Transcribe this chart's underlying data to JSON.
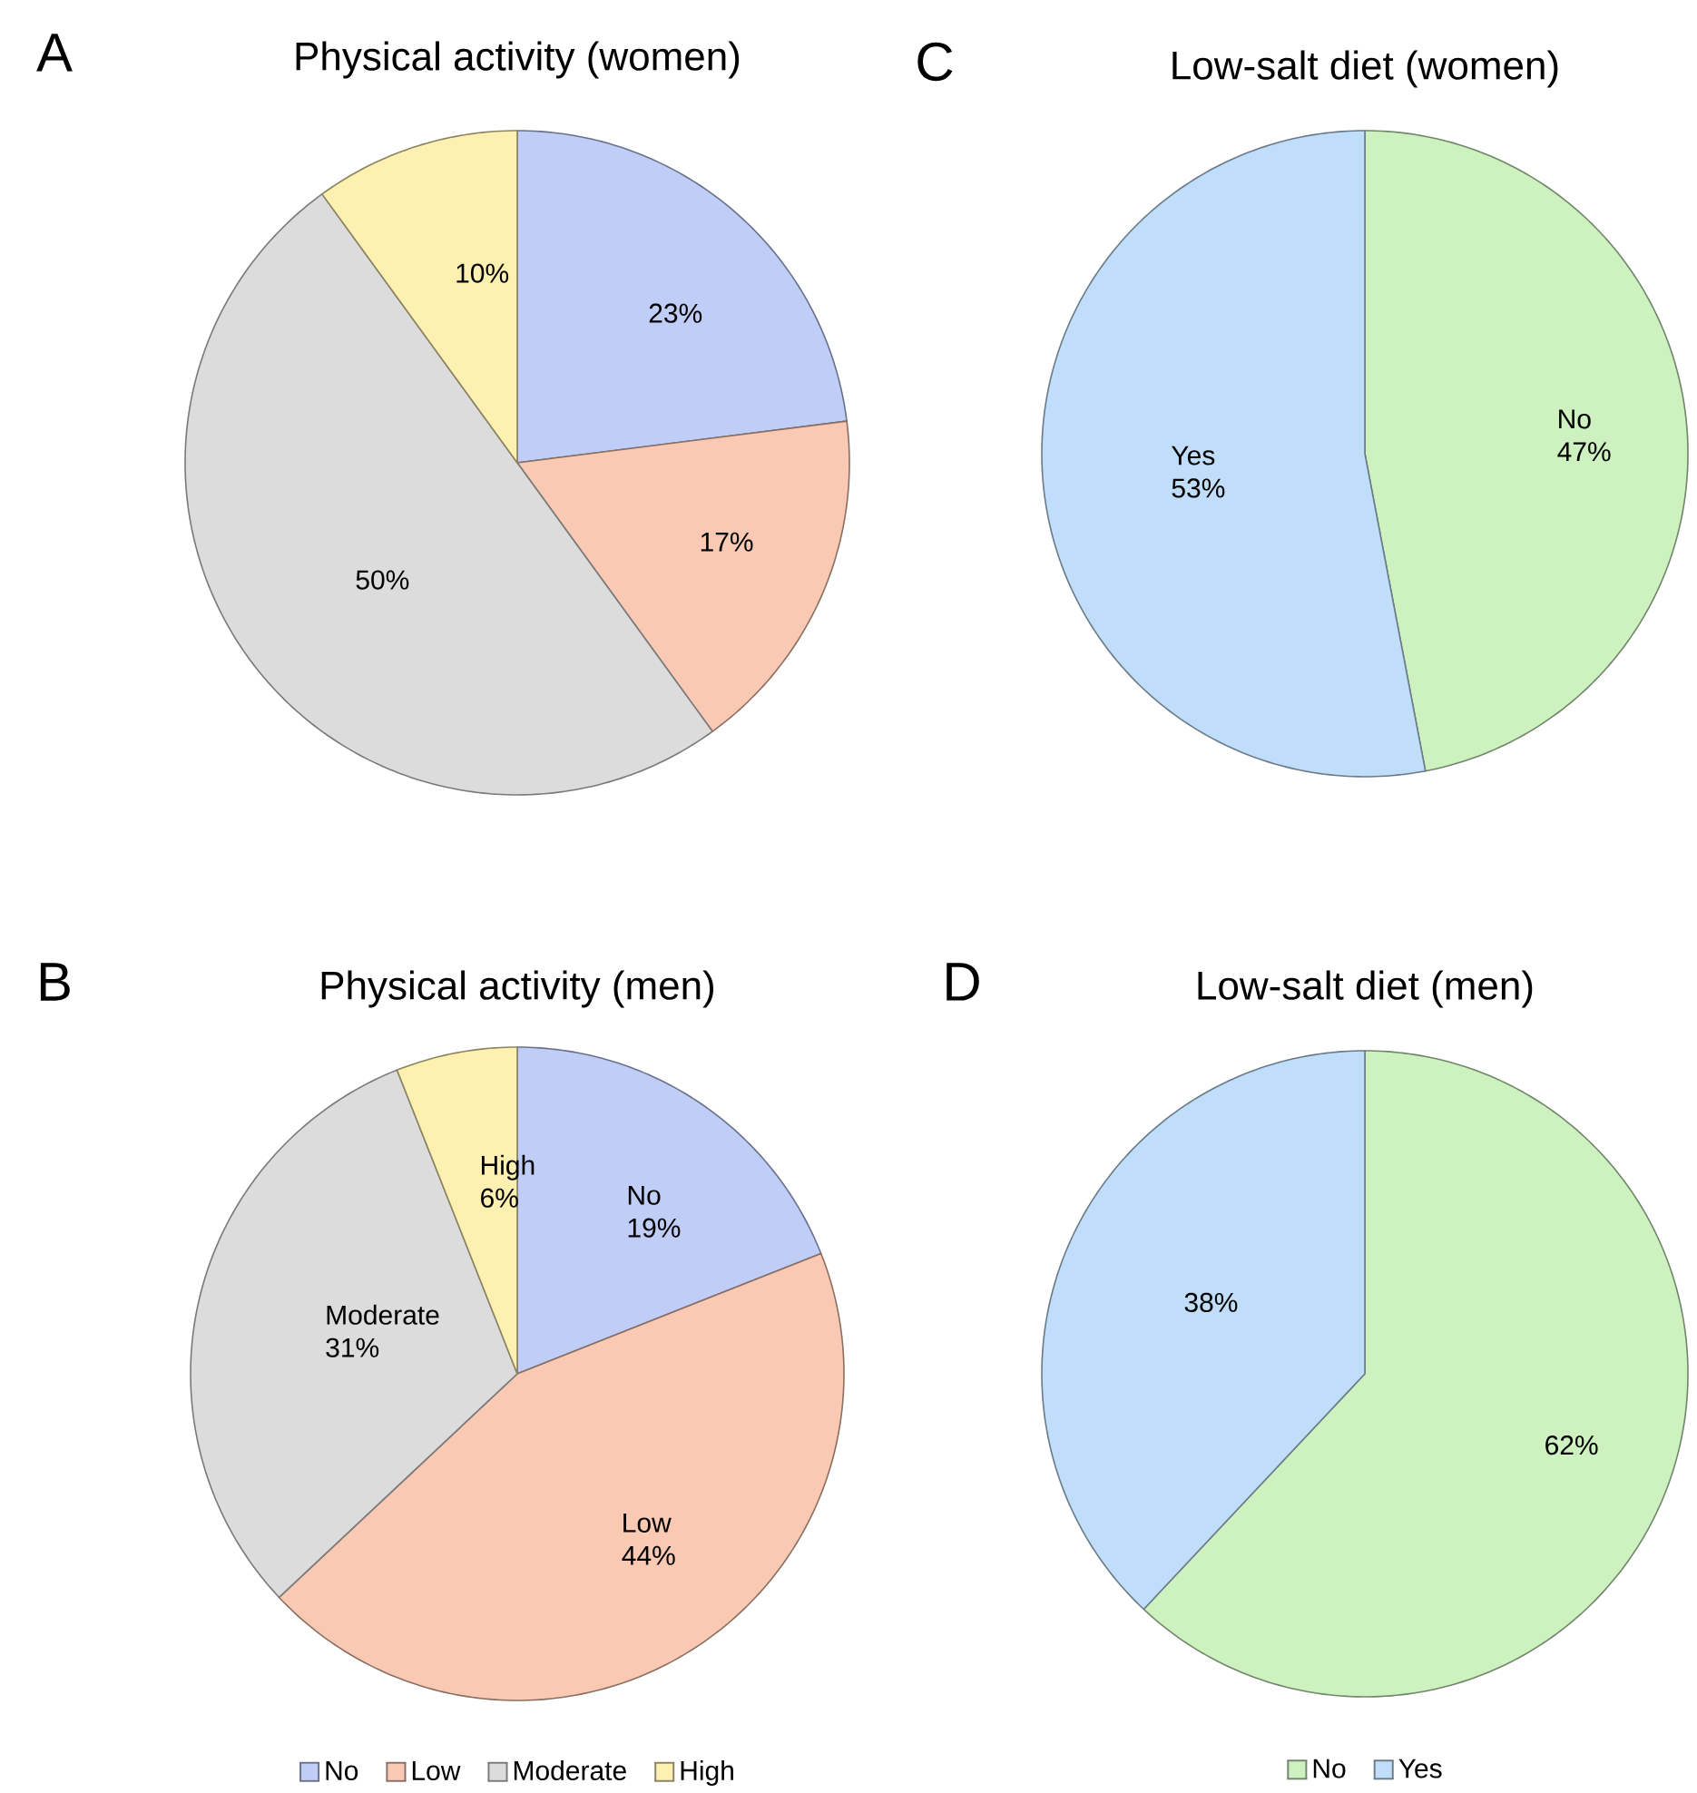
{
  "chart_data": [
    {
      "type": "pie",
      "title": "Physical activity (women)",
      "annotations": [
        "A"
      ],
      "categories": [
        null,
        null,
        null,
        null
      ],
      "values": [
        23,
        17,
        50,
        10
      ],
      "colors": [
        "#bfcdf7",
        "#fac9b3",
        "#dcdcdc",
        "#fdf0b0"
      ],
      "value_labels": [
        "23%",
        "17%",
        "50%",
        "10%"
      ]
    },
    {
      "type": "pie",
      "title": "Low-salt diet (women)",
      "annotations": [
        "C"
      ],
      "categories": [
        null,
        null
      ],
      "values": [
        47,
        53
      ],
      "colors": [
        "#cdf2c0",
        "#c0def9"
      ],
      "value_labels": [
        "No 47%",
        "Yes 53%"
      ]
    },
    {
      "type": "pie",
      "title": "Physical activity (men)",
      "annotations": [
        "B"
      ],
      "categories": [
        "No",
        "Low",
        "Moderate",
        "High"
      ],
      "values": [
        19,
        44,
        31,
        6
      ],
      "colors": [
        "#bfcdf7",
        "#fac9b3",
        "#dcdcdc",
        "#fdf0b0"
      ],
      "value_labels": [
        "No 19%",
        "Low 44%",
        "Moderate 31%",
        "High 6%"
      ],
      "legend": "bottom"
    },
    {
      "type": "pie",
      "title": "Low-salt diet (men)",
      "annotations": [
        "D"
      ],
      "categories": [
        "No",
        "Yes"
      ],
      "values": [
        62,
        38
      ],
      "colors": [
        "#cdf2c0",
        "#c0def9"
      ],
      "value_labels": [
        "62%",
        "38%"
      ],
      "legend": "bottom"
    }
  ]
}
